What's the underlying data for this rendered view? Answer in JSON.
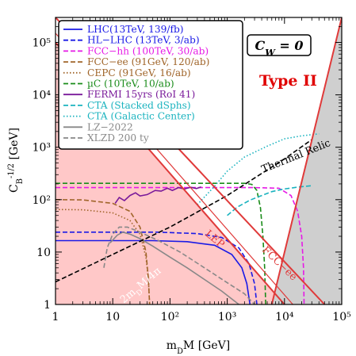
{
  "chart_data": {
    "type": "line",
    "xlabel": "m_DM [GeV]",
    "ylabel": "C_B^{-1/2} [GeV]",
    "xscale": "log",
    "yscale": "log",
    "xlim": [
      1,
      100000
    ],
    "ylim": [
      1,
      300000
    ],
    "grid": false,
    "legend_position": "top-left",
    "x_ticks": [
      "1",
      "10",
      "10²",
      "10³",
      "10⁴",
      "10⁵"
    ],
    "y_ticks": [
      "1",
      "10",
      "10²",
      "10³",
      "10⁴",
      "10⁵"
    ],
    "annotations": {
      "cw_box": "C_W = 0",
      "type_label": "Type II",
      "thermal": "Thermal Relic",
      "lep": "LEP",
      "fcc_ee": "FCC−ee",
      "two_mdm": "2m_DM/4π"
    },
    "colors": {
      "excluded_fill": "#ffc8c8",
      "gray_fill": "#cfcfcf",
      "type_label": "#e00000",
      "band_line": "#e03a3a"
    },
    "series": [
      {
        "name": "LHC(13TeV, 139/fb)",
        "color": "#1a1ae6",
        "dash": "solid",
        "points": [
          [
            1,
            16.5
          ],
          [
            50,
            16.5
          ],
          [
            200,
            15.8
          ],
          [
            600,
            13.5
          ],
          [
            1200,
            9
          ],
          [
            1800,
            5
          ],
          [
            2200,
            2.5
          ],
          [
            2500,
            1
          ]
        ]
      },
      {
        "name": "HL−LHC (13TeV, 3/ab)",
        "color": "#1a1ae6",
        "dash": "dash",
        "points": [
          [
            1,
            24
          ],
          [
            60,
            24
          ],
          [
            300,
            22.5
          ],
          [
            800,
            19
          ],
          [
            1600,
            12
          ],
          [
            2400,
            6
          ],
          [
            3000,
            2.5
          ],
          [
            3300,
            1
          ]
        ]
      },
      {
        "name": "FCC−hh (100TeV, 30/ab)",
        "color": "#e619e6",
        "dash": "dash",
        "points": [
          [
            1,
            170
          ],
          [
            3000,
            170
          ],
          [
            8000,
            165
          ],
          [
            13000,
            120
          ],
          [
            17000,
            60
          ],
          [
            20000,
            20
          ],
          [
            21500,
            5
          ],
          [
            22000,
            1
          ]
        ]
      },
      {
        "name": "FCC−ee (91GeV, 120/ab)",
        "color": "#a0652a",
        "dash": "dash",
        "points": [
          [
            1,
            100
          ],
          [
            3,
            99
          ],
          [
            10,
            85
          ],
          [
            20,
            60
          ],
          [
            30,
            30
          ],
          [
            38,
            10
          ],
          [
            42,
            3
          ],
          [
            44,
            1
          ]
        ]
      },
      {
        "name": "CEPC (91GeV, 16/ab)",
        "color": "#a0652a",
        "dash": "dot",
        "points": [
          [
            1,
            65
          ],
          [
            3,
            64
          ],
          [
            10,
            56
          ],
          [
            20,
            40
          ],
          [
            30,
            22
          ],
          [
            38,
            8
          ],
          [
            42,
            3
          ],
          [
            44,
            1
          ]
        ]
      },
      {
        "name": "µC (10TeV, 10/ab)",
        "color": "#1a8c1a",
        "dash": "dash",
        "points": [
          [
            1,
            205
          ],
          [
            2000,
            205
          ],
          [
            2700,
            195
          ],
          [
            3300,
            150
          ],
          [
            3800,
            70
          ],
          [
            4200,
            20
          ],
          [
            4500,
            5
          ],
          [
            4700,
            1
          ]
        ]
      },
      {
        "name": "FERMI 15yrs (RoI 41)",
        "color": "#7a1a9a",
        "dash": "solid",
        "points": [
          [
            11,
            85
          ],
          [
            13,
            110
          ],
          [
            16,
            96
          ],
          [
            20,
            120
          ],
          [
            25,
            135
          ],
          [
            30,
            118
          ],
          [
            40,
            125
          ],
          [
            55,
            150
          ],
          [
            70,
            145
          ],
          [
            90,
            165
          ],
          [
            110,
            150
          ],
          [
            140,
            170
          ],
          [
            180,
            160
          ],
          [
            230,
            172
          ],
          [
            290,
            163
          ],
          [
            350,
            175
          ]
        ]
      },
      {
        "name": "CTA (Stacked dSphs)",
        "color": "#1ab3bf",
        "dash": "dash",
        "points": [
          [
            1000,
            50
          ],
          [
            1500,
            72
          ],
          [
            2500,
            98
          ],
          [
            4000,
            120
          ],
          [
            6000,
            142
          ],
          [
            10000,
            160
          ],
          [
            18000,
            175
          ],
          [
            30000,
            185
          ]
        ]
      },
      {
        "name": "CTA (Galactic Center)",
        "color": "#1ab3bf",
        "dash": "dot",
        "points": [
          [
            300,
            80
          ],
          [
            600,
            180
          ],
          [
            1000,
            350
          ],
          [
            2000,
            650
          ],
          [
            5000,
            1050
          ],
          [
            10000,
            1450
          ],
          [
            20000,
            1650
          ],
          [
            40000,
            1800
          ]
        ]
      },
      {
        "name": "LZ−2022",
        "color": "#888888",
        "dash": "solid",
        "points": [
          [
            9,
            15
          ],
          [
            12,
            21
          ],
          [
            15,
            24
          ],
          [
            20,
            22
          ],
          [
            30,
            18
          ],
          [
            50,
            13
          ],
          [
            100,
            8
          ],
          [
            200,
            5
          ],
          [
            400,
            3
          ],
          [
            800,
            1.8
          ],
          [
            1600,
            1
          ]
        ]
      },
      {
        "name": "XLZD 200 ty",
        "color": "#888888",
        "dash": "dash",
        "points": [
          [
            7,
            5
          ],
          [
            8,
            12
          ],
          [
            10,
            22
          ],
          [
            13,
            30
          ],
          [
            18,
            30
          ],
          [
            30,
            24
          ],
          [
            60,
            17
          ],
          [
            150,
            10
          ],
          [
            400,
            5
          ],
          [
            1000,
            2.6
          ],
          [
            2000,
            1.6
          ],
          [
            3000,
            1
          ]
        ]
      },
      {
        "name": "Thermal Relic",
        "color": "#000000",
        "dash": "dash",
        "points": [
          [
            1,
            2.7
          ],
          [
            10,
            9
          ],
          [
            100,
            30
          ],
          [
            1000,
            120
          ],
          [
            10000,
            600
          ],
          [
            30000,
            1400
          ]
        ]
      },
      {
        "name": "LEP",
        "color": "#e03a3a",
        "dash": "solid",
        "points": [
          [
            1,
            100000
          ],
          [
            10000,
            1
          ]
        ]
      },
      {
        "name": "FCC−ee",
        "color": "#e03a3a",
        "dash": "solid",
        "points": [
          [
            1,
            300000
          ],
          [
            50000,
            1
          ]
        ]
      },
      {
        "name": "2m_DM/4π",
        "color": "#e03a3a",
        "dash": "solid",
        "points": [
          [
            6000,
            1
          ],
          [
            100000,
            300000
          ]
        ]
      }
    ]
  }
}
